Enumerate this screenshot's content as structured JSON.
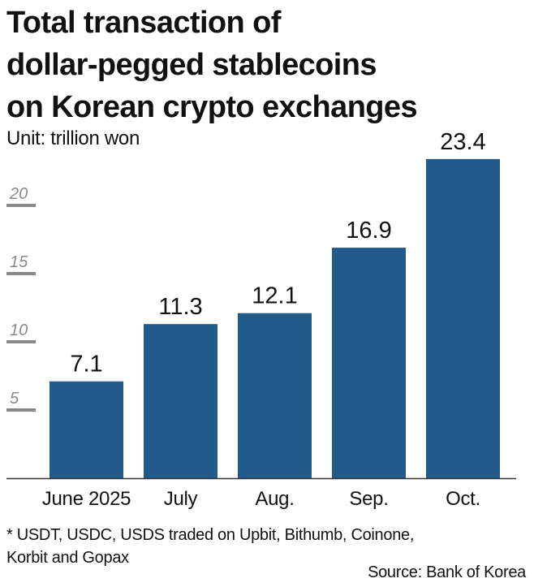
{
  "title_lines": [
    "Total transaction of",
    "dollar-pegged stablecoins",
    "on Korean crypto exchanges"
  ],
  "unit": "Unit: trillion won",
  "footnote_lines": [
    "* USDT, USDC, USDS traded on Upbit, Bithumb, Coinone,",
    "Korbit and Gopax"
  ],
  "source": "Source: Bank of Korea",
  "colors": {
    "bar": "#225a8c",
    "tick": "#8a8a8a",
    "axis": "#333333",
    "text": "#111111"
  },
  "chart_data": {
    "type": "bar",
    "categories": [
      "June 2025",
      "July",
      "Aug.",
      "Sep.",
      "Oct."
    ],
    "values": [
      7.1,
      11.3,
      12.1,
      16.9,
      23.4
    ],
    "data_labels": [
      "7.1",
      "11.3",
      "12.1",
      "16.9",
      "23.4"
    ],
    "yticks": [
      5,
      10,
      15,
      20
    ],
    "ylim": [
      0,
      24
    ],
    "grid": false,
    "legend": "none",
    "xlabel": "",
    "ylabel": ""
  }
}
